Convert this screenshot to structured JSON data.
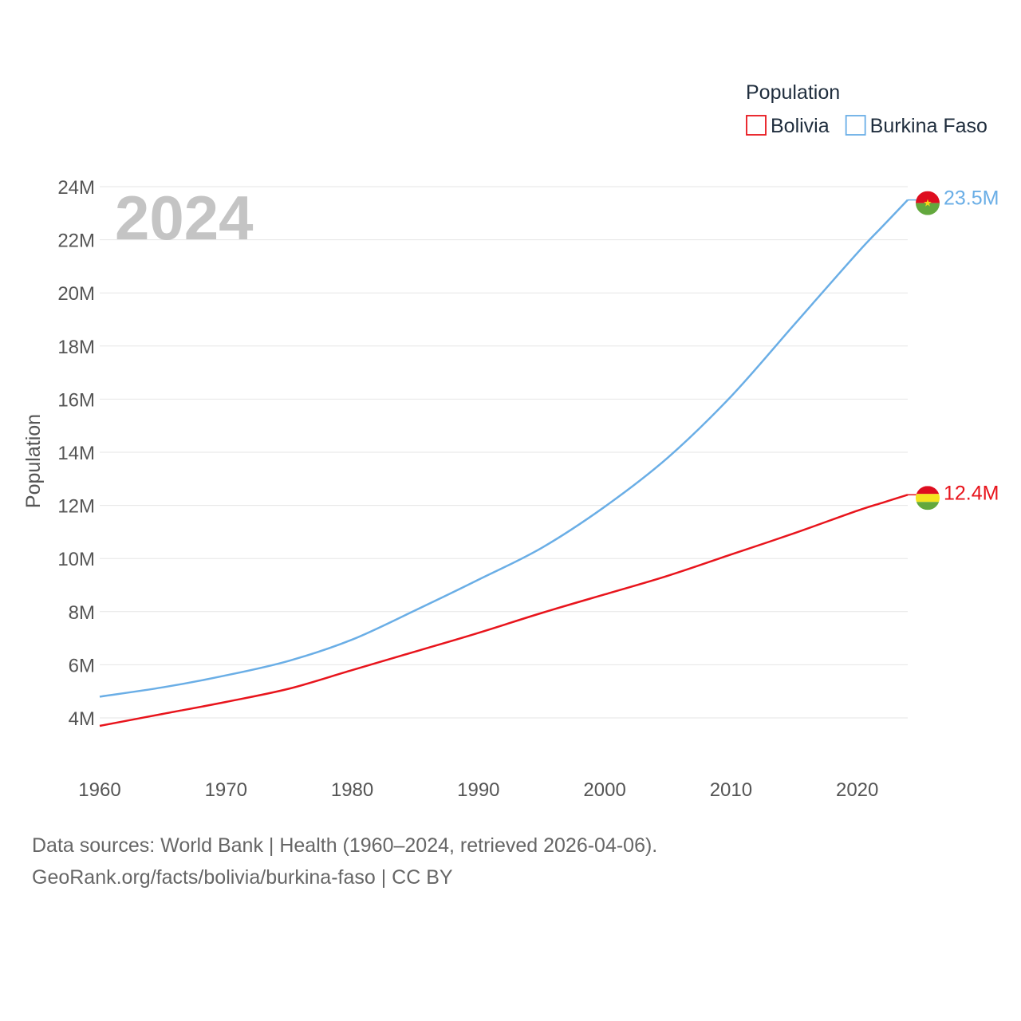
{
  "chart_data": {
    "type": "line",
    "title": "",
    "ylabel": "Population",
    "xlabel": "",
    "year_label": "2024",
    "x_ticks": [
      "1960",
      "1970",
      "1980",
      "1990",
      "2000",
      "2010",
      "2020"
    ],
    "x_tick_values": [
      1960,
      1970,
      1980,
      1990,
      2000,
      2010,
      2020
    ],
    "y_ticks": [
      "4M",
      "6M",
      "8M",
      "10M",
      "12M",
      "14M",
      "16M",
      "18M",
      "20M",
      "22M",
      "24M"
    ],
    "y_tick_values": [
      4,
      6,
      8,
      10,
      12,
      14,
      16,
      18,
      20,
      22,
      24
    ],
    "xlim": [
      1960,
      2024
    ],
    "ylim": [
      4,
      24
    ],
    "grid": true,
    "legend": {
      "title": "Population",
      "placement": "top-right"
    },
    "series": [
      {
        "name": "Bolivia",
        "color": "#e8141c",
        "end_label": "12.4M",
        "flag": "bolivia-flag",
        "x": [
          1960,
          1965,
          1970,
          1975,
          1980,
          1985,
          1990,
          1995,
          2000,
          2005,
          2010,
          2015,
          2020,
          2022,
          2024
        ],
        "values": [
          3.7,
          4.15,
          4.6,
          5.1,
          5.8,
          6.5,
          7.2,
          7.95,
          8.65,
          9.35,
          10.15,
          10.95,
          11.8,
          12.1,
          12.4
        ]
      },
      {
        "name": "Burkina Faso",
        "color": "#6aaee6",
        "end_label": "23.5M",
        "flag": "burkina-faso-flag",
        "x": [
          1960,
          1965,
          1970,
          1975,
          1980,
          1985,
          1990,
          1995,
          2000,
          2005,
          2010,
          2015,
          2020,
          2022,
          2024
        ],
        "values": [
          4.8,
          5.15,
          5.6,
          6.15,
          6.95,
          8.05,
          9.2,
          10.4,
          11.95,
          13.8,
          16.1,
          18.8,
          21.5,
          22.5,
          23.5
        ]
      }
    ]
  },
  "footer": {
    "line1": "Data sources: World Bank | Health (1960–2024, retrieved 2026-04-06).",
    "line2": "GeoRank.org/facts/bolivia/burkina-faso | CC BY"
  }
}
